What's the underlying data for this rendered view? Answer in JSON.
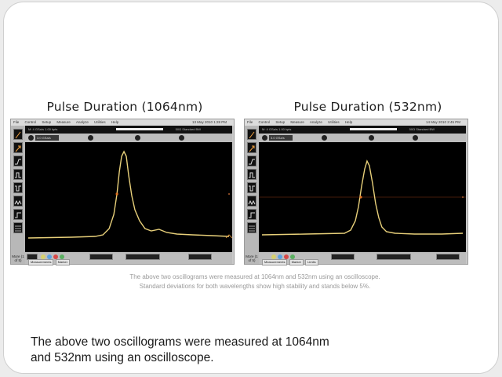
{
  "left_panel": {
    "title": "Pulse Duration (1064nm)",
    "menu": [
      "File",
      "Control",
      "Setup",
      "Measure",
      "Analyze",
      "Utilities",
      "Help"
    ],
    "date": "13 May 2010 1:28 PM",
    "status_left": "M: 4 GSa/s   1.00 kpts",
    "status_right": "50Ω  Standard  BW",
    "channel_value": "3.0 GSa/s",
    "more_label": "More (1 of 5)",
    "bottom_tabs": [
      "Measurements",
      "Marker",
      "Limits"
    ]
  },
  "right_panel": {
    "title": "Pulse Duration (532nm)",
    "menu": [
      "File",
      "Control",
      "Setup",
      "Measure",
      "Analyze",
      "Utilities",
      "Help"
    ],
    "date": "14 May 2010 2:45 PM",
    "status_left": "M: 4 GSa/s   1.00 kpts",
    "status_right": "50Ω  Standard  BW",
    "channel_value": "3.0 GSa/s",
    "more_label": "More (1 of 5)",
    "bottom_tabs": [
      "Measurements",
      "Marker",
      "Limits"
    ]
  },
  "caption": {
    "line1": "The above two oscillograms were measured at 1064nm and 532nm using an oscilloscope.",
    "line2": "Standard deviations for both wavelengths show high stability and stands below 5%."
  },
  "body_text": {
    "line1": "The above two oscillograms were measured at 1064nm",
    "line2": "and 532nm using an oscilloscope."
  },
  "colors": {
    "trace": "#e8d07a",
    "marker": "#e07020",
    "screen": "#000000"
  }
}
